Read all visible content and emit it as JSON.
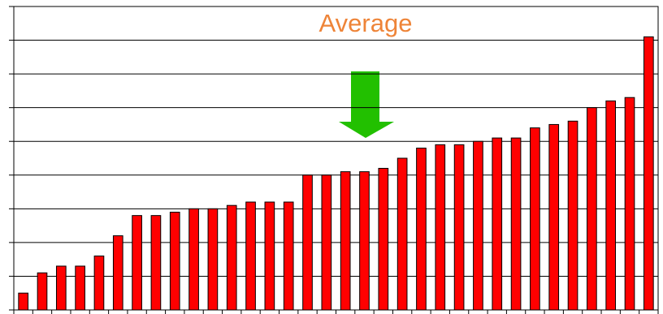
{
  "chart_data": {
    "type": "bar",
    "annotation": "Average",
    "categories": [
      null,
      null,
      null,
      null,
      null,
      null,
      null,
      null,
      null,
      null,
      null,
      null,
      null,
      null,
      null,
      null,
      null,
      null,
      null,
      null,
      null,
      null,
      null,
      null,
      null,
      null,
      null,
      null,
      null,
      null,
      null,
      null,
      null,
      null
    ],
    "values": [
      0.5,
      1.1,
      1.3,
      1.3,
      1.6,
      2.2,
      2.8,
      2.8,
      2.9,
      3.0,
      3.0,
      3.1,
      3.2,
      3.2,
      3.2,
      4.0,
      4.0,
      4.1,
      4.1,
      4.2,
      4.5,
      4.8,
      4.9,
      4.9,
      5.0,
      5.1,
      5.1,
      5.4,
      5.5,
      5.6,
      6.0,
      6.2,
      6.3,
      8.1
    ],
    "color": "#ff0000",
    "annotation_color": "#ee8438",
    "ylim": [
      0,
      9
    ],
    "yticks": [
      0,
      1,
      2,
      3,
      4,
      5,
      6,
      7,
      8,
      9
    ],
    "grid": true
  }
}
